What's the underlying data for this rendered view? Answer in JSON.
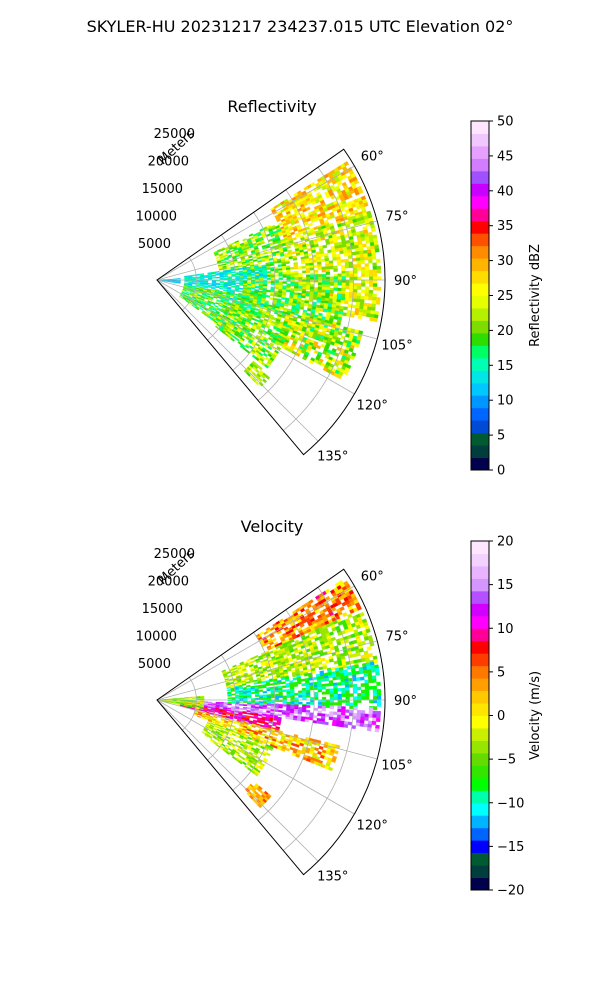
{
  "figure_title": "SKYLER-HU  20231217  234237.015 UTC Elevation 02°",
  "chart_data": [
    {
      "type": "heatmap",
      "projection": "polar-sector",
      "title": "Reflectivity",
      "radial_label": "Meters",
      "radial_ticks": [
        "5000",
        "10000",
        "15000",
        "20000",
        "25000"
      ],
      "radial_tick_values": [
        5000,
        10000,
        15000,
        20000,
        25000
      ],
      "r_max": 29000,
      "angle_range_deg": [
        55,
        140
      ],
      "angle_ticks": [
        "60°",
        "75°",
        "90°",
        "105°",
        "120°",
        "135°"
      ],
      "angle_tick_values": [
        60,
        75,
        90,
        105,
        120,
        135
      ],
      "grid": true,
      "colorbar": {
        "label": "Reflectivity dBZ",
        "min": 0,
        "max": 50,
        "ticks": [
          "0",
          "5",
          "10",
          "15",
          "20",
          "25",
          "30",
          "35",
          "40",
          "45",
          "50"
        ],
        "colors": [
          "#00004c",
          "#003d3d",
          "#005a32",
          "#004bd6",
          "#0066ff",
          "#0096ff",
          "#00c8ff",
          "#00e6e6",
          "#00ffb4",
          "#00ff64",
          "#2fdc00",
          "#7ddc00",
          "#b4f000",
          "#e6ff00",
          "#ffff00",
          "#ffdc00",
          "#ffb400",
          "#ff8c00",
          "#ff5000",
          "#ff0000",
          "#ff0096",
          "#ff00ff",
          "#c800ff",
          "#a050ff",
          "#d27dff",
          "#e6a0ff",
          "#f0c8ff",
          "#ffe6ff"
        ]
      },
      "echo_regions": [
        {
          "a0": 58,
          "a1": 72,
          "r0": 17000,
          "r1": 28500,
          "level": 27,
          "spread": 3
        },
        {
          "a0": 64,
          "a1": 88,
          "r0": 8000,
          "r1": 17000,
          "level": 21,
          "spread": 3
        },
        {
          "a0": 72,
          "a1": 100,
          "r0": 17000,
          "r1": 28500,
          "level": 24,
          "spread": 3
        },
        {
          "a0": 82,
          "a1": 104,
          "r0": 3500,
          "r1": 14000,
          "level": 14,
          "spread": 2
        },
        {
          "a0": 88,
          "a1": 110,
          "r0": 11000,
          "r1": 24000,
          "level": 20,
          "spread": 3
        },
        {
          "a0": 100,
          "a1": 126,
          "r0": 3500,
          "r1": 13000,
          "level": 19,
          "spread": 3
        },
        {
          "a0": 104,
          "a1": 118,
          "r0": 16000,
          "r1": 27000,
          "level": 23,
          "spread": 4
        },
        {
          "a0": 108,
          "a1": 128,
          "r0": 9000,
          "r1": 18000,
          "level": 21,
          "spread": 3
        },
        {
          "a0": 130,
          "a1": 136,
          "r0": 16000,
          "r1": 19000,
          "level": 22,
          "spread": 2
        },
        {
          "a0": 86,
          "a1": 98,
          "r0": 500,
          "r1": 3000,
          "level": 12,
          "spread": 2
        }
      ]
    },
    {
      "type": "heatmap",
      "projection": "polar-sector",
      "title": "Velocity",
      "radial_label": "Meters",
      "radial_ticks": [
        "5000",
        "10000",
        "15000",
        "20000",
        "25000"
      ],
      "radial_tick_values": [
        5000,
        10000,
        15000,
        20000,
        25000
      ],
      "r_max": 29000,
      "angle_range_deg": [
        55,
        140
      ],
      "angle_ticks": [
        "60°",
        "75°",
        "90°",
        "105°",
        "120°",
        "135°"
      ],
      "angle_tick_values": [
        60,
        75,
        90,
        105,
        120,
        135
      ],
      "grid": true,
      "colorbar": {
        "label": "Velocity (m/s)",
        "min": -20,
        "max": 20,
        "ticks": [
          "−20",
          "−15",
          "−10",
          "−5",
          "0",
          "5",
          "10",
          "15",
          "20"
        ],
        "colors": [
          "#00004c",
          "#003d3d",
          "#005a32",
          "#0000ff",
          "#0064ff",
          "#00b4ff",
          "#00ffff",
          "#00ffaa",
          "#00ff00",
          "#32e600",
          "#64dc00",
          "#96e600",
          "#c8f000",
          "#ffff00",
          "#ffe600",
          "#ffc800",
          "#ffa000",
          "#ff7800",
          "#ff3c00",
          "#ff0000",
          "#ff0096",
          "#ff00ff",
          "#d200ff",
          "#b450ff",
          "#d696ff",
          "#e8b4ff",
          "#f4d2ff",
          "#ffe6ff"
        ]
      },
      "echo_regions": [
        {
          "a0": 57,
          "a1": 66,
          "r0": 15000,
          "r1": 28500,
          "level": 4,
          "spread": 3
        },
        {
          "a0": 66,
          "a1": 80,
          "r0": 9000,
          "r1": 28500,
          "level": -3,
          "spread": 2
        },
        {
          "a0": 80,
          "a1": 92,
          "r0": 9000,
          "r1": 28500,
          "level": -9,
          "spread": 2
        },
        {
          "a0": 92,
          "a1": 98,
          "r0": 3000,
          "r1": 28500,
          "level": 14,
          "spread": 2
        },
        {
          "a0": 98,
          "a1": 104,
          "r0": 3000,
          "r1": 16000,
          "level": 10,
          "spread": 2
        },
        {
          "a0": 104,
          "a1": 112,
          "r0": 5000,
          "r1": 24000,
          "level": 2,
          "spread": 3
        },
        {
          "a0": 112,
          "a1": 127,
          "r0": 7000,
          "r1": 16000,
          "level": -3,
          "spread": 2
        },
        {
          "a0": 85,
          "a1": 102,
          "r0": 500,
          "r1": 6000,
          "level": -3,
          "spread": 3
        },
        {
          "a0": 130,
          "a1": 136,
          "r0": 16000,
          "r1": 19000,
          "level": 3,
          "spread": 2
        }
      ]
    }
  ]
}
